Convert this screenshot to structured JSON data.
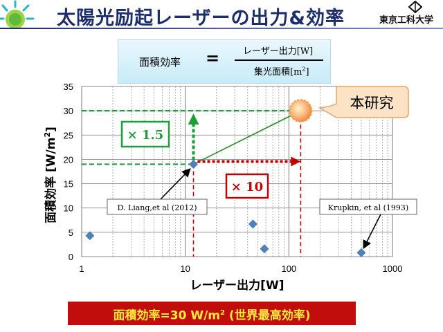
{
  "slide": {
    "title": "太陽光励起レーザーの出力&効率",
    "organization": "東京工科大学"
  },
  "formula": {
    "lhs": "面積効率",
    "equals": "=",
    "numerator": "レーザー出力[W]",
    "denominator_text": "集光面積[m",
    "denominator_sup": "2",
    "denominator_end": "]"
  },
  "chart_data": {
    "type": "scatter",
    "xlabel": "レーザー出力[W]",
    "ylabel": "面積効率 [W/m",
    "ylabel_sup": "2",
    "ylabel_end": "]",
    "xscale": "log",
    "xlim": [
      1,
      1000
    ],
    "ylim": [
      0,
      35
    ],
    "xticks": [
      "1",
      "10",
      "100",
      "1000"
    ],
    "yticks": [
      "0",
      "5",
      "10",
      "15",
      "20",
      "25",
      "30",
      "35"
    ],
    "grid": true,
    "series": [
      {
        "points": [
          [
            1.2,
            4.3
          ],
          [
            12,
            19
          ],
          [
            45,
            6.7
          ],
          [
            58,
            1.6
          ],
          [
            500,
            0.8
          ]
        ],
        "color": "#4f81bd"
      }
    ],
    "this_work": {
      "x": 130,
      "y": 30,
      "label": "本研究"
    },
    "annotations": [
      {
        "text": "D. Liang,et  al (2012)",
        "x": 12,
        "y": 19
      },
      {
        "text": "Krupkin,  et al (1993)",
        "x": 500,
        "y": 0.8
      }
    ],
    "multipliers": [
      {
        "text": "× 1.5",
        "direction": "vertical",
        "color": "#1e9e3a"
      },
      {
        "text": "× 10",
        "direction": "horizontal",
        "color": "#c00000"
      }
    ]
  },
  "highlight": {
    "prefix": "面積効率=30 W/m",
    "sup": "2",
    "suffix": " (世界最高効率)"
  }
}
